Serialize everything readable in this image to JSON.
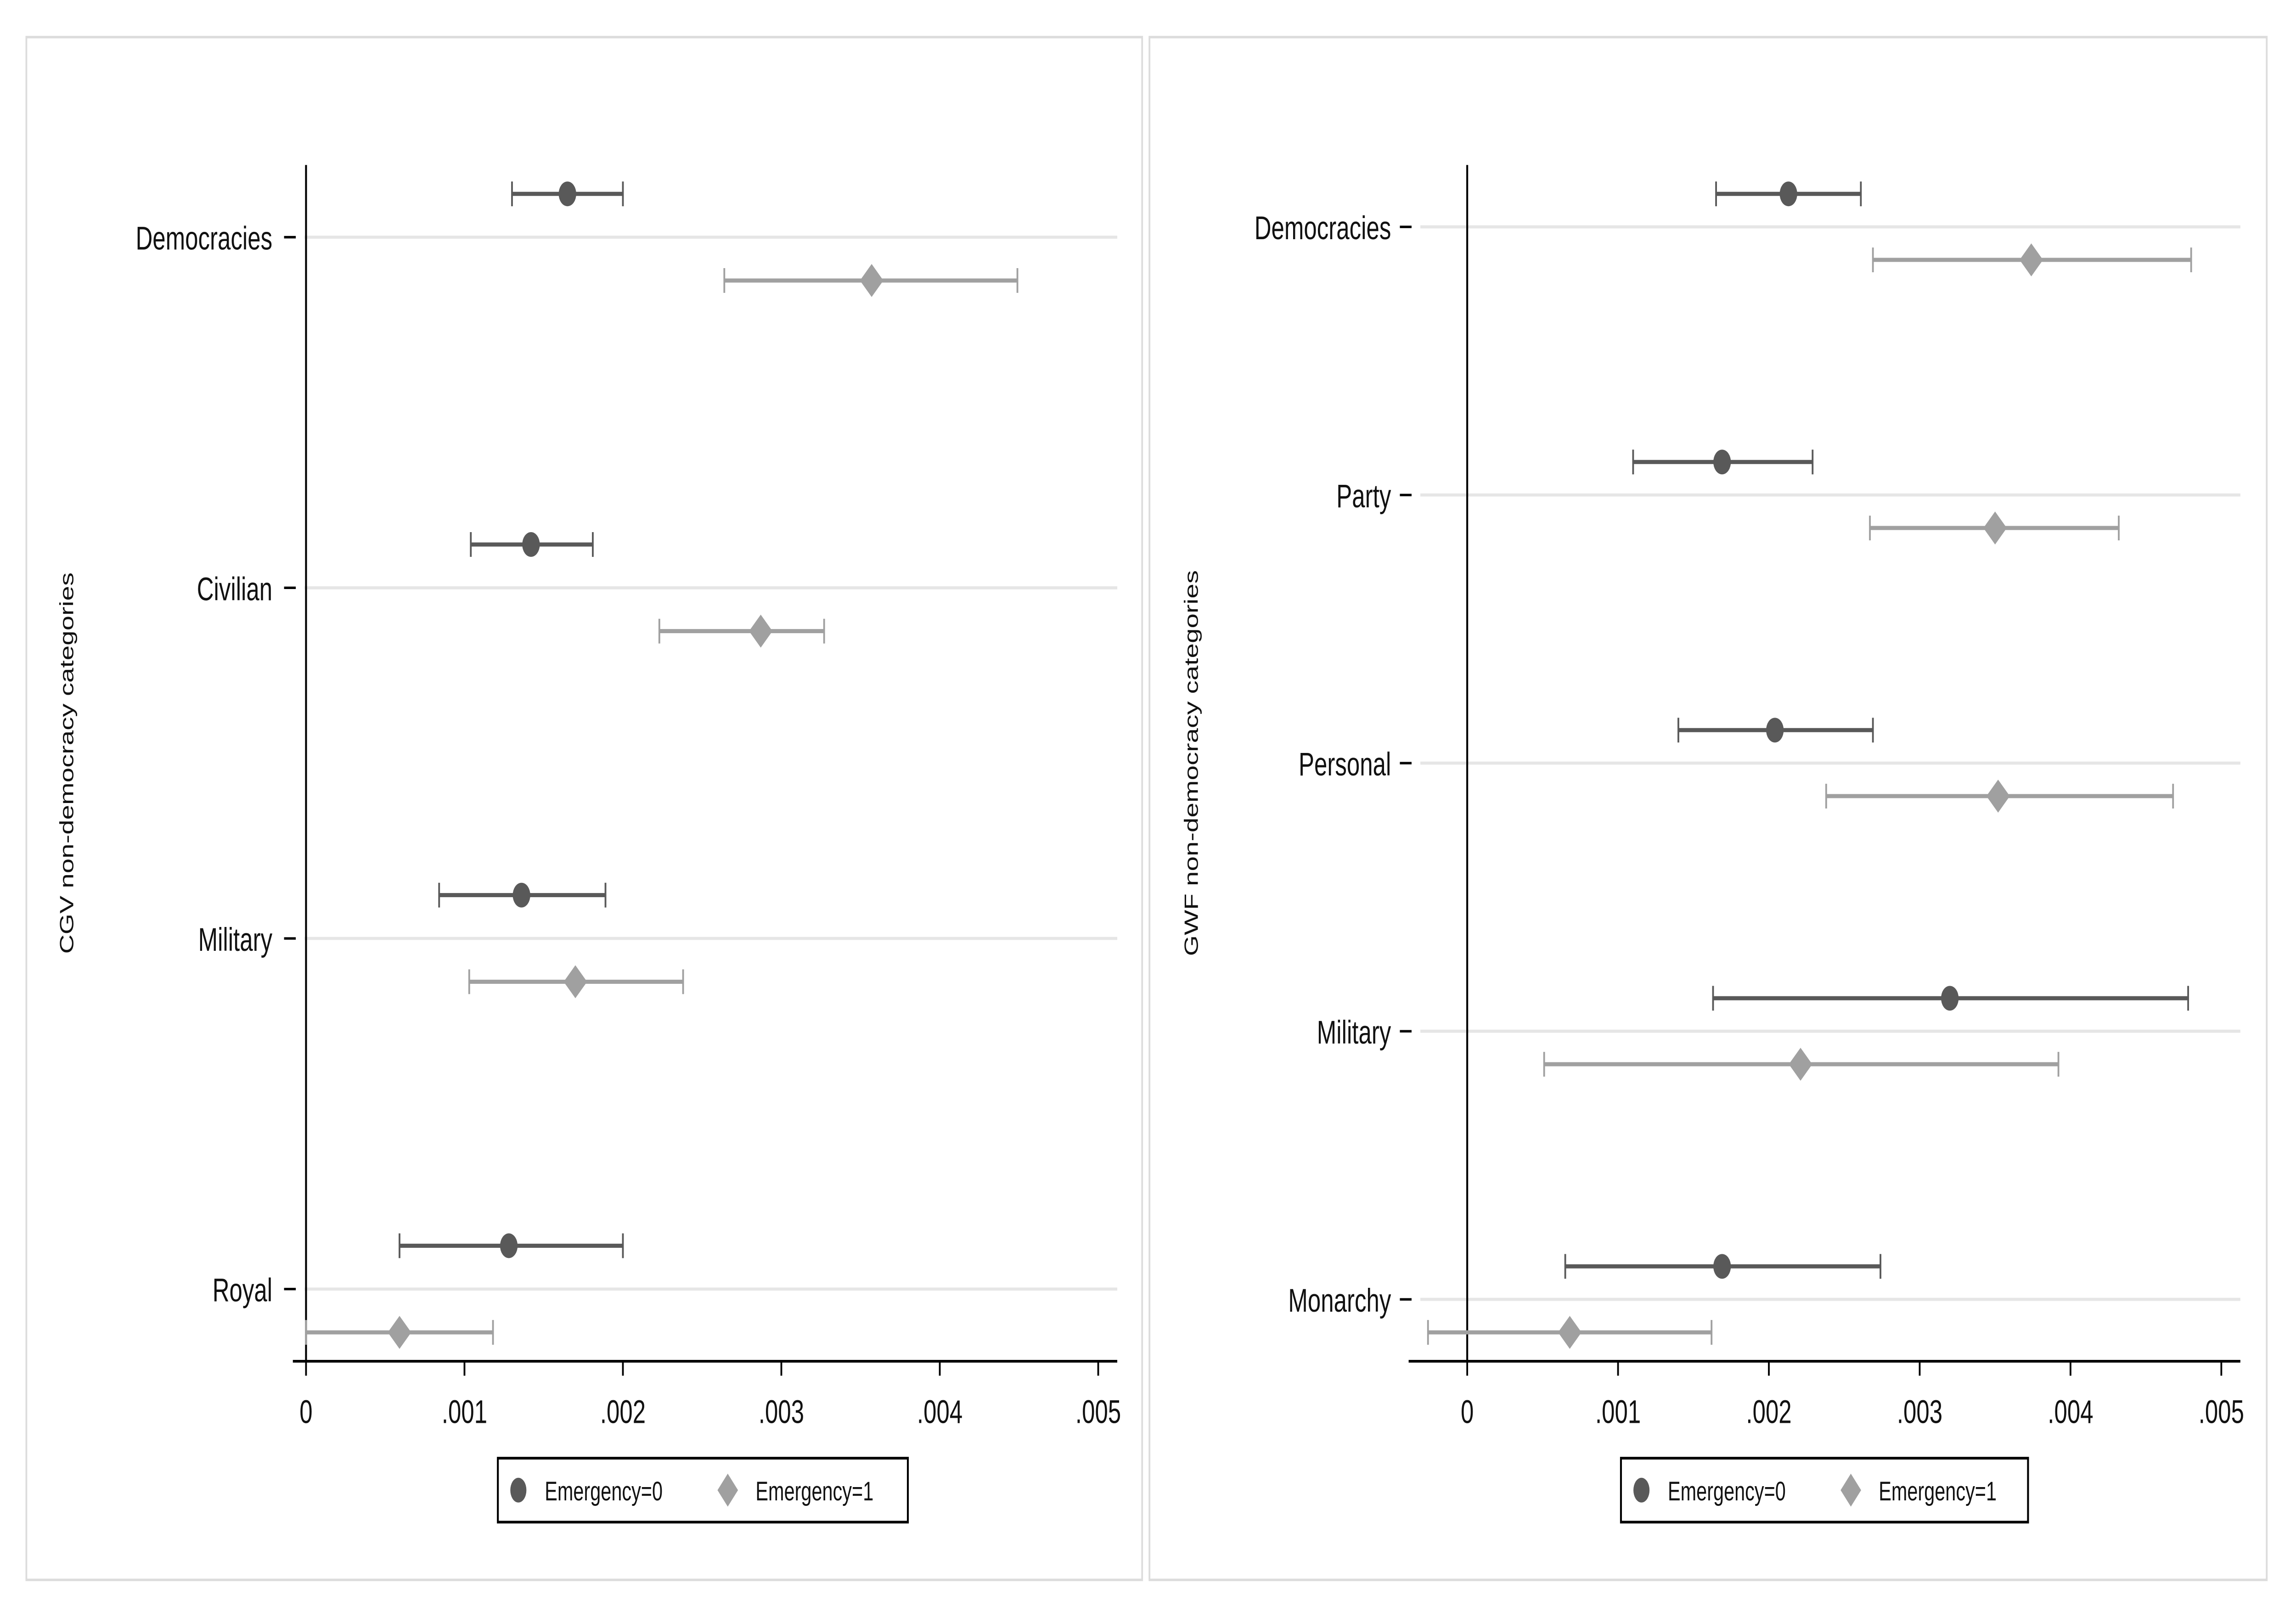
{
  "colors": {
    "emergency0": "#595959",
    "emergency1": "#a0a0a0",
    "grid": "#e6e6e6",
    "axis": "#000000",
    "panel_border": "#dcdcdc"
  },
  "chart_data": [
    {
      "type": "scatter",
      "subtype": "coefficient-plot-with-confidence-intervals",
      "ylabel": "CGV non-democracy categories",
      "xlabel": "",
      "xlim": [
        0,
        0.0051
      ],
      "xticks": [
        0,
        0.001,
        0.002,
        0.003,
        0.004,
        0.005
      ],
      "xtick_labels": [
        "0",
        ".001",
        ".002",
        ".003",
        ".004",
        ".005"
      ],
      "grid": "horizontal",
      "legend_position": "bottom",
      "legend": [
        "Emergency=0",
        "Emergency=1"
      ],
      "categories": [
        "Democracies",
        "Civilian",
        "Military",
        "Royal"
      ],
      "series": [
        {
          "name": "Emergency=0",
          "marker": "circle",
          "values": [
            0.00165,
            0.00142,
            0.00136,
            0.00128
          ],
          "ci_low": [
            0.0013,
            0.00104,
            0.00084,
            0.00059
          ],
          "ci_high": [
            0.002,
            0.00181,
            0.00189,
            0.002
          ]
        },
        {
          "name": "Emergency=1",
          "marker": "diamond",
          "values": [
            0.00357,
            0.00287,
            0.0017,
            0.00059
          ],
          "ci_low": [
            0.00264,
            0.00223,
            0.00103,
            0.0
          ],
          "ci_high": [
            0.00449,
            0.00327,
            0.00238,
            0.00118
          ]
        }
      ]
    },
    {
      "type": "scatter",
      "subtype": "coefficient-plot-with-confidence-intervals",
      "ylabel": "GWF non-democracy categories",
      "xlabel": "",
      "xlim": [
        -0.0004,
        0.0051
      ],
      "xticks": [
        0,
        0.001,
        0.002,
        0.003,
        0.004,
        0.005
      ],
      "xtick_labels": [
        "0",
        ".001",
        ".002",
        ".003",
        ".004",
        ".005"
      ],
      "grid": "horizontal",
      "legend_position": "bottom",
      "legend": [
        "Emergency=0",
        "Emergency=1"
      ],
      "categories": [
        "Democracies",
        "Party",
        "Personal",
        "Military",
        "Monarchy"
      ],
      "series": [
        {
          "name": "Emergency=0",
          "marker": "circle",
          "values": [
            0.00213,
            0.00169,
            0.00204,
            0.0032,
            0.00169
          ],
          "ci_low": [
            0.00165,
            0.0011,
            0.0014,
            0.00163,
            0.00065
          ],
          "ci_high": [
            0.00261,
            0.00229,
            0.00269,
            0.00478,
            0.00274
          ]
        },
        {
          "name": "Emergency=1",
          "marker": "diamond",
          "values": [
            0.00374,
            0.0035,
            0.00352,
            0.00221,
            0.00068
          ],
          "ci_low": [
            0.00269,
            0.00267,
            0.00238,
            0.00051,
            -0.00026
          ],
          "ci_high": [
            0.0048,
            0.00432,
            0.00468,
            0.00392,
            0.00162
          ]
        }
      ]
    }
  ]
}
